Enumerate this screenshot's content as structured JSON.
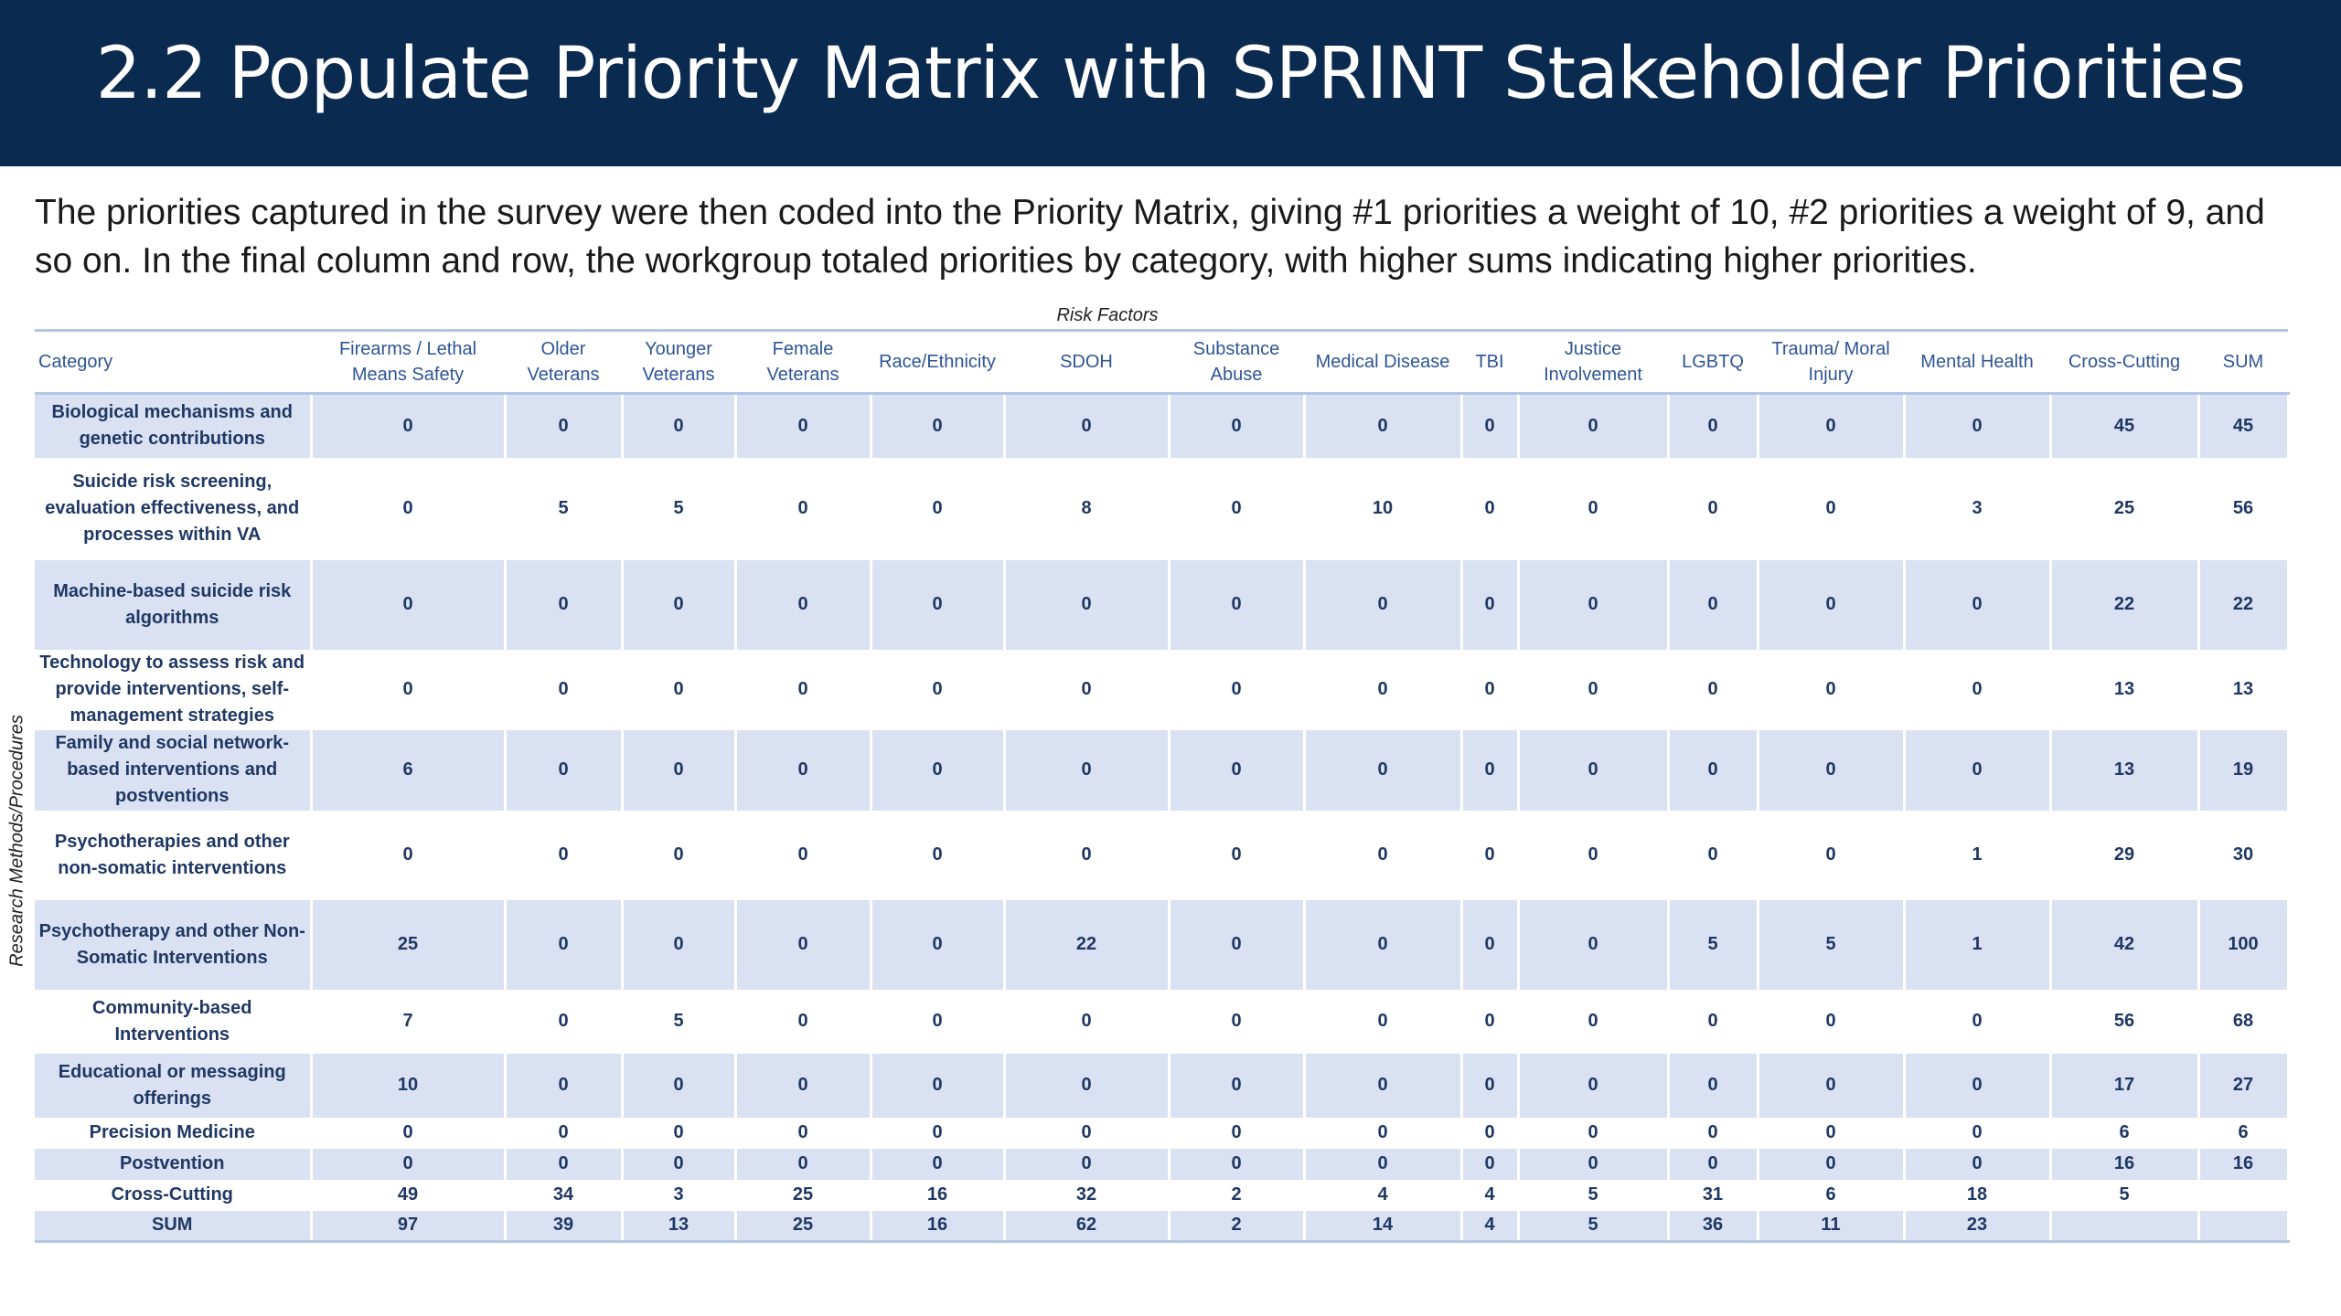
{
  "title": "2.2 Populate Priority Matrix with SPRINT Stakeholder Priorities",
  "intro": "The priorities captured in the survey were then coded into the Priority Matrix, giving #1 priorities a weight of 10, #2 priorities a weight of 9, and so on. In the final column and row, the workgroup totaled priorities by category, with higher sums indicating higher priorities.",
  "matrix": {
    "column_group_label": "Risk Factors",
    "row_group_label": "Research Methods/Procedures",
    "headers": [
      "Category",
      "Firearms / Lethal Means Safety",
      "Older Veterans",
      "Younger Veterans",
      "Female Veterans",
      "Race/Ethnicity",
      "SDOH",
      "Substance Abuse",
      "Medical Disease",
      "TBI",
      "Justice Involvement",
      "LGBTQ",
      "Trauma/ Moral Injury",
      "Mental Health",
      "Cross-Cutting",
      "SUM"
    ],
    "rows": [
      {
        "category": "Biological mechanisms and genetic contributions",
        "values": [
          "0",
          "0",
          "0",
          "0",
          "0",
          "0",
          "0",
          "0",
          "0",
          "0",
          "0",
          "0",
          "0",
          "45",
          "45"
        ]
      },
      {
        "category": "Suicide risk screening, evaluation effectiveness, and processes within VA",
        "values": [
          "0",
          "5",
          "5",
          "0",
          "0",
          "8",
          "0",
          "10",
          "0",
          "0",
          "0",
          "0",
          "3",
          "25",
          "56"
        ]
      },
      {
        "category": "Machine-based suicide risk algorithms",
        "values": [
          "0",
          "0",
          "0",
          "0",
          "0",
          "0",
          "0",
          "0",
          "0",
          "0",
          "0",
          "0",
          "0",
          "22",
          "22"
        ]
      },
      {
        "category": "Technology to assess risk and provide interventions, self-management strategies",
        "values": [
          "0",
          "0",
          "0",
          "0",
          "0",
          "0",
          "0",
          "0",
          "0",
          "0",
          "0",
          "0",
          "0",
          "13",
          "13"
        ]
      },
      {
        "category": "Family and social network-based interventions and postventions",
        "values": [
          "6",
          "0",
          "0",
          "0",
          "0",
          "0",
          "0",
          "0",
          "0",
          "0",
          "0",
          "0",
          "0",
          "13",
          "19"
        ]
      },
      {
        "category": "Psychotherapies and other non-somatic interventions",
        "values": [
          "0",
          "0",
          "0",
          "0",
          "0",
          "0",
          "0",
          "0",
          "0",
          "0",
          "0",
          "0",
          "1",
          "29",
          "30"
        ]
      },
      {
        "category": "Psychotherapy and other Non-Somatic Interventions",
        "values": [
          "25",
          "0",
          "0",
          "0",
          "0",
          "22",
          "0",
          "0",
          "0",
          "0",
          "5",
          "5",
          "1",
          "42",
          "100"
        ]
      },
      {
        "category": "Community-based Interventions",
        "values": [
          "7",
          "0",
          "5",
          "0",
          "0",
          "0",
          "0",
          "0",
          "0",
          "0",
          "0",
          "0",
          "0",
          "56",
          "68"
        ]
      },
      {
        "category": "Educational or messaging offerings",
        "values": [
          "10",
          "0",
          "0",
          "0",
          "0",
          "0",
          "0",
          "0",
          "0",
          "0",
          "0",
          "0",
          "0",
          "17",
          "27"
        ]
      },
      {
        "category": "Precision Medicine",
        "values": [
          "0",
          "0",
          "0",
          "0",
          "0",
          "0",
          "0",
          "0",
          "0",
          "0",
          "0",
          "0",
          "0",
          "6",
          "6"
        ]
      },
      {
        "category": "Postvention",
        "values": [
          "0",
          "0",
          "0",
          "0",
          "0",
          "0",
          "0",
          "0",
          "0",
          "0",
          "0",
          "0",
          "0",
          "16",
          "16"
        ]
      },
      {
        "category": "Cross-Cutting",
        "values": [
          "49",
          "34",
          "3",
          "25",
          "16",
          "32",
          "2",
          "4",
          "4",
          "5",
          "31",
          "6",
          "18",
          "5",
          ""
        ]
      },
      {
        "category": "SUM",
        "values": [
          "97",
          "39",
          "13",
          "25",
          "16",
          "62",
          "2",
          "14",
          "4",
          "5",
          "36",
          "11",
          "23",
          "",
          ""
        ]
      }
    ]
  }
}
